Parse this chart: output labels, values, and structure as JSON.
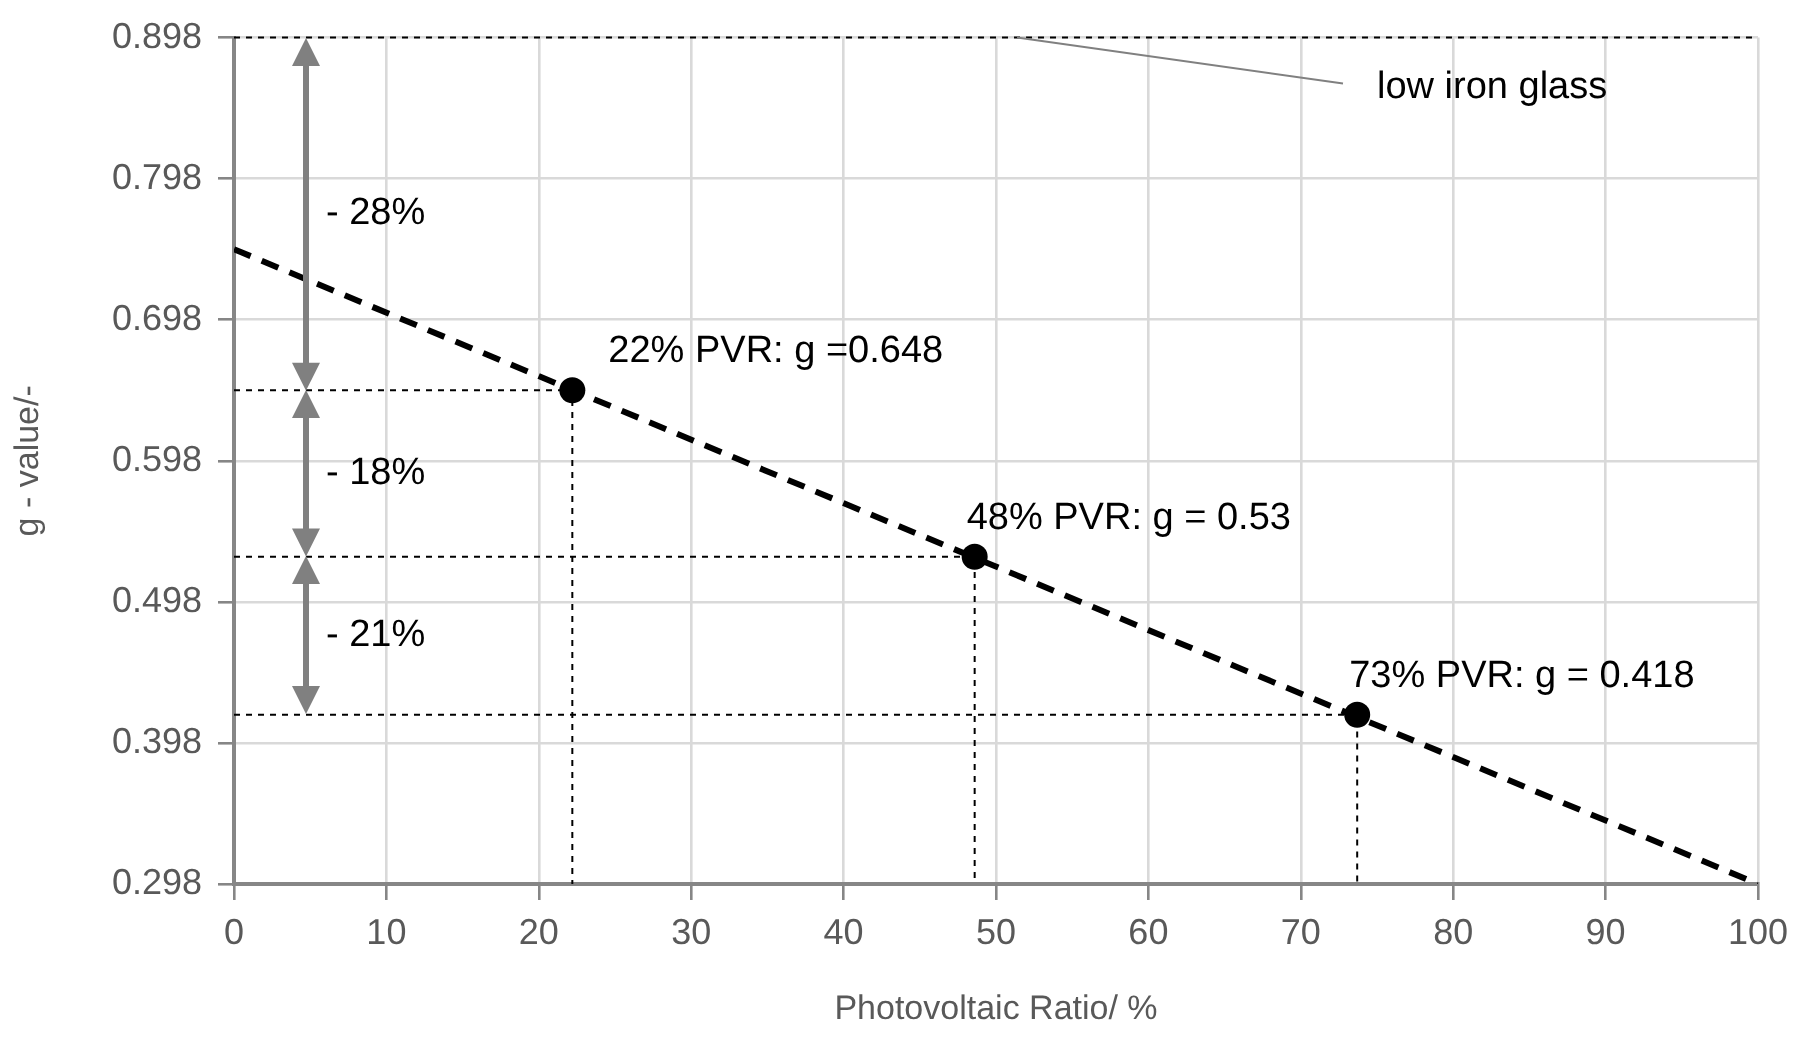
{
  "chart_data": {
    "type": "scatter",
    "xlabel": "Photovoltaic Ratio/ %",
    "ylabel": "g - value/-",
    "xlim": [
      0,
      100
    ],
    "xticks": [
      0,
      10,
      20,
      30,
      40,
      50,
      60,
      70,
      80,
      90,
      100
    ],
    "ylim": [
      0.298,
      0.898
    ],
    "yticks": [
      0.298,
      0.398,
      0.498,
      0.598,
      0.698,
      0.798,
      0.898
    ],
    "grid": true,
    "legend": false,
    "series": [
      {
        "type": "line",
        "color": "#000000",
        "line_style": "dashed",
        "marker": "none",
        "x": [
          0,
          100
        ],
        "values": [
          0.748,
          0.298
        ]
      },
      {
        "type": "line",
        "color": "#000000",
        "line_style": "dotted",
        "marker": "none",
        "x": [
          0,
          22.2,
          22.2
        ],
        "values": [
          0.648,
          0.648,
          0.298
        ]
      },
      {
        "type": "line",
        "color": "#000000",
        "line_style": "dotted",
        "marker": "none",
        "x": [
          0,
          48.6,
          48.6
        ],
        "values": [
          0.53,
          0.53,
          0.298
        ]
      },
      {
        "type": "line",
        "color": "#000000",
        "line_style": "dotted",
        "marker": "none",
        "x": [
          0,
          73.7,
          73.7
        ],
        "values": [
          0.418,
          0.418,
          0.298
        ]
      },
      {
        "color": "#000000",
        "marker": "circle",
        "x": [
          22.2,
          48.6,
          73.7
        ],
        "values": [
          0.648,
          0.53,
          0.418
        ],
        "value_labels": [
          "22% PVR: g =0.648",
          "48% PVR: g = 0.53",
          "73% PVR: g = 0.418"
        ]
      }
    ],
    "ref_lines": [
      {
        "axis": "y",
        "value": 0.898,
        "label": "low iron glass",
        "color": "#000000",
        "line_style": "dashed"
      }
    ],
    "annotations": [
      "- 28%",
      "- 18%",
      "- 21%"
    ]
  }
}
